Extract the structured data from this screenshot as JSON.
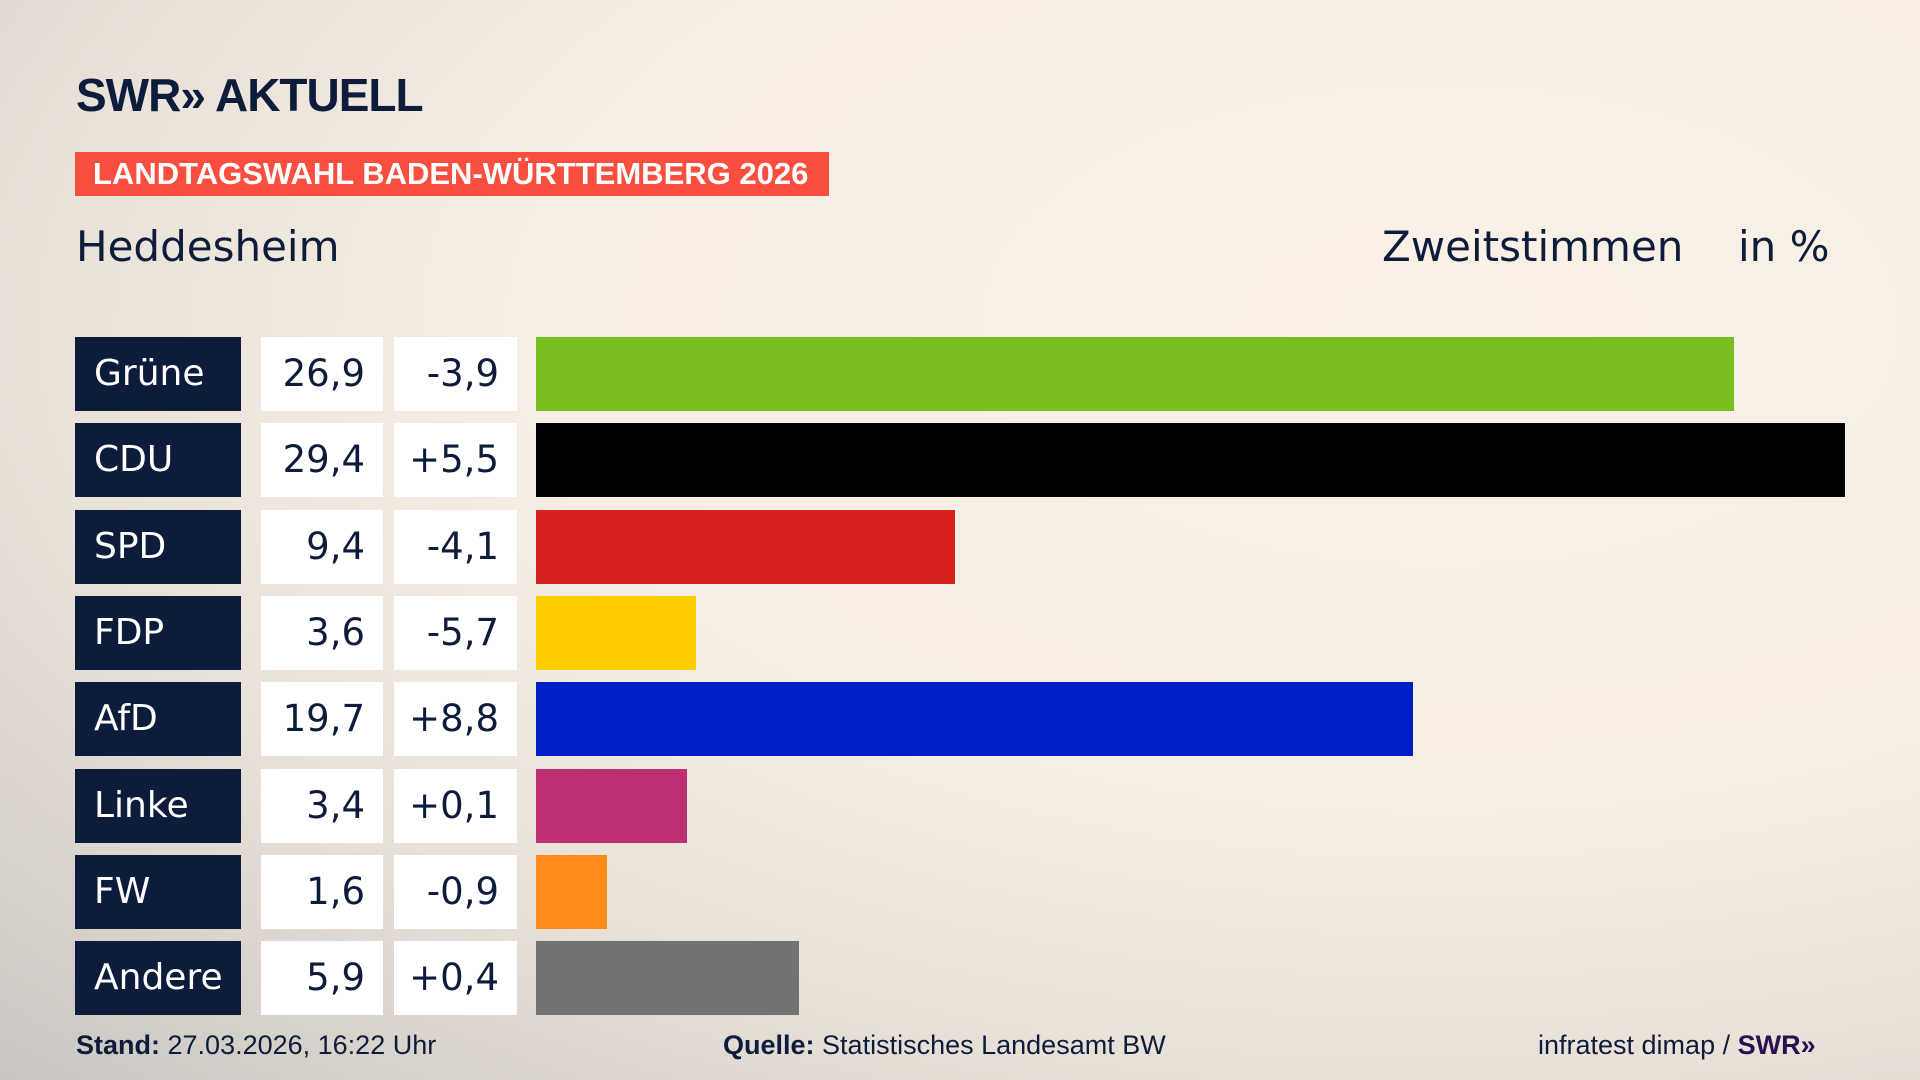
{
  "logo": "SWR» AKTUELL",
  "banner": "LANDTAGSWAHL BADEN-WÜRTTEMBERG 2026",
  "place": "Heddesheim",
  "kind": "Zweitstimmen",
  "unit": "in %",
  "chart_data": {
    "type": "bar",
    "orientation": "horizontal",
    "categories": [
      "Grüne",
      "CDU",
      "SPD",
      "FDP",
      "AfD",
      "Linke",
      "FW",
      "Andere"
    ],
    "values": [
      26.9,
      29.4,
      9.4,
      3.6,
      19.7,
      3.4,
      1.6,
      5.9
    ],
    "value_labels": [
      "26,9",
      "29,4",
      "9,4",
      "3,6",
      "19,7",
      "3,4",
      "1,6",
      "5,9"
    ],
    "changes": [
      "-3,9",
      "+5,5",
      "-4,1",
      "-5,7",
      "+8,8",
      "+0,1",
      "-0,9",
      "+0,4"
    ],
    "colors": [
      "#78be1e",
      "#000000",
      "#d71f1d",
      "#ffcc00",
      "#001ec8",
      "#be3075",
      "#ff8c1a",
      "#737373"
    ],
    "xlim": [
      0,
      29.4
    ]
  },
  "footer": {
    "stand_label": "Stand:",
    "stand": "27.03.2026, 16:22 Uhr",
    "source_label": "Quelle:",
    "source": "Statistisches Landesamt BW",
    "credit": "infratest dimap / ",
    "credit_logo": "SWR»"
  }
}
